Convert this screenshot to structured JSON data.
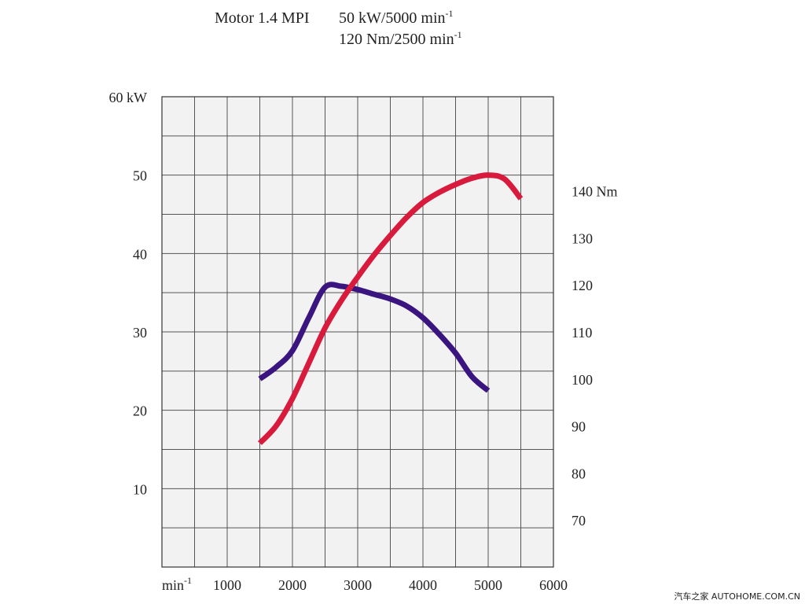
{
  "header": {
    "engine": "Motor 1.4 MPI",
    "power_rating": "50 kW/5000 min",
    "torque_rating": "120 Nm/2500 min",
    "superscript": "-1"
  },
  "watermark": "汽车之家  AUTOHOME.COM.CN",
  "chart_data": {
    "type": "line",
    "title": "Motor 1.4 MPI",
    "x_unit_label": "min",
    "x_unit_superscript": "-1",
    "x_ticks": [
      "1000",
      "2000",
      "3000",
      "4000",
      "5000",
      "6000"
    ],
    "left_unit": "kW",
    "left_ticks": [
      "10",
      "20",
      "30",
      "40",
      "50",
      "60"
    ],
    "right_unit": "Nm",
    "right_ticks": [
      "70",
      "80",
      "90",
      "100",
      "110",
      "120",
      "130",
      "140"
    ],
    "xlim": [
      0,
      6000
    ],
    "ylim_left": [
      0,
      60
    ],
    "ylim_right": [
      60,
      160
    ],
    "grid": true,
    "series": [
      {
        "axis": "left",
        "color": "#d81a3c",
        "x": [
          1500,
          1750,
          2000,
          2250,
          2500,
          2750,
          3000,
          3250,
          3500,
          3750,
          4000,
          4250,
          4500,
          4750,
          5000,
          5250,
          5500
        ],
        "values": [
          15.8,
          18.0,
          21.5,
          26.0,
          30.5,
          34.0,
          37.0,
          39.8,
          42.3,
          44.6,
          46.5,
          47.8,
          48.8,
          49.6,
          50.0,
          49.5,
          47.0
        ]
      },
      {
        "axis": "right",
        "color": "#3a1580",
        "x": [
          1500,
          1750,
          2000,
          2250,
          2500,
          2750,
          3000,
          3250,
          3500,
          3750,
          4000,
          4250,
          4500,
          4750,
          5000
        ],
        "values": [
          100,
          102.5,
          106,
          113,
          119.5,
          119.7,
          119.0,
          118.0,
          117.0,
          115.5,
          113.0,
          109.5,
          105.5,
          100.5,
          97.5
        ]
      }
    ]
  }
}
